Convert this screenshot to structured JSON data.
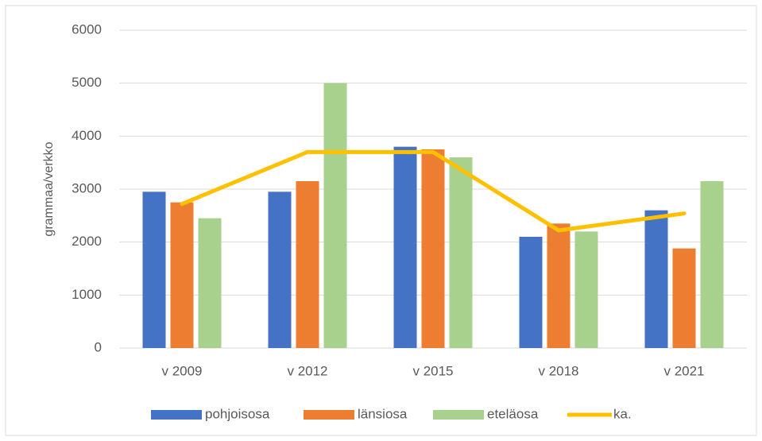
{
  "chart_data": {
    "type": "bar",
    "y_label": "grammaa/verkko",
    "categories": [
      "v 2009",
      "v 2012",
      "v 2015",
      "v 2018",
      "v 2021"
    ],
    "series": [
      {
        "name": "pohjoisosa",
        "color": "#4472c4",
        "values": [
          2950,
          2950,
          3800,
          2100,
          2600
        ]
      },
      {
        "name": "länsiosa",
        "color": "#ed7d31",
        "values": [
          2750,
          3150,
          3750,
          2350,
          1880
        ]
      },
      {
        "name": "eteläosa",
        "color": "#a9d18e",
        "values": [
          2450,
          5000,
          3600,
          2200,
          3150
        ]
      },
      {
        "name": "ka.",
        "color": "#ffc000",
        "type": "line",
        "values": [
          2720,
          3700,
          3700,
          2220,
          2540
        ]
      }
    ],
    "ylim": [
      0,
      6000
    ],
    "yticks": [
      0,
      1000,
      2000,
      3000,
      4000,
      5000,
      6000
    ],
    "grid": true,
    "legend": "bottom"
  }
}
